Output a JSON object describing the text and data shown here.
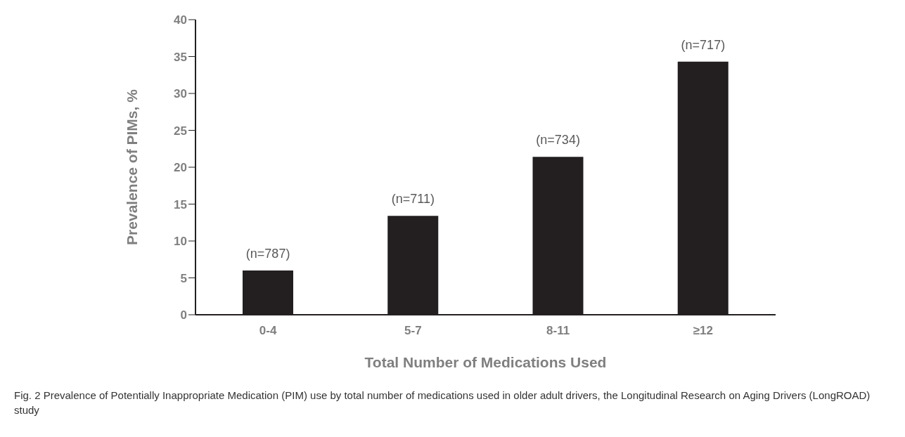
{
  "chart_data": {
    "type": "bar",
    "xlabel": "Total Number of Medications Used",
    "ylabel": "Prevalence of PIMs, %",
    "categories": [
      "0-4",
      "5-7",
      "8-11",
      "≥12"
    ],
    "values": [
      6.0,
      13.4,
      21.4,
      34.3
    ],
    "color": "#231f20",
    "ylim": [
      0,
      40
    ],
    "yticks": [
      0,
      5,
      10,
      15,
      20,
      25,
      30,
      35,
      40
    ],
    "grid": false,
    "legend": false,
    "annotations": [
      {
        "text": "(n=787)",
        "x": "0-4",
        "y": 6.0
      },
      {
        "text": "(n=711)",
        "x": "5-7",
        "y": 13.4
      },
      {
        "text": "(n=734)",
        "x": "8-11",
        "y": 21.4
      },
      {
        "text": "(n=717)",
        "x": "≥12",
        "y": 34.3
      },
      "Fig. 2 Prevalence of Potentially Inappropriate Medication (PIM) use by total number of medications used in older adult drivers, the Longitudinal Research on Aging Drivers (LongROAD) study"
    ]
  }
}
